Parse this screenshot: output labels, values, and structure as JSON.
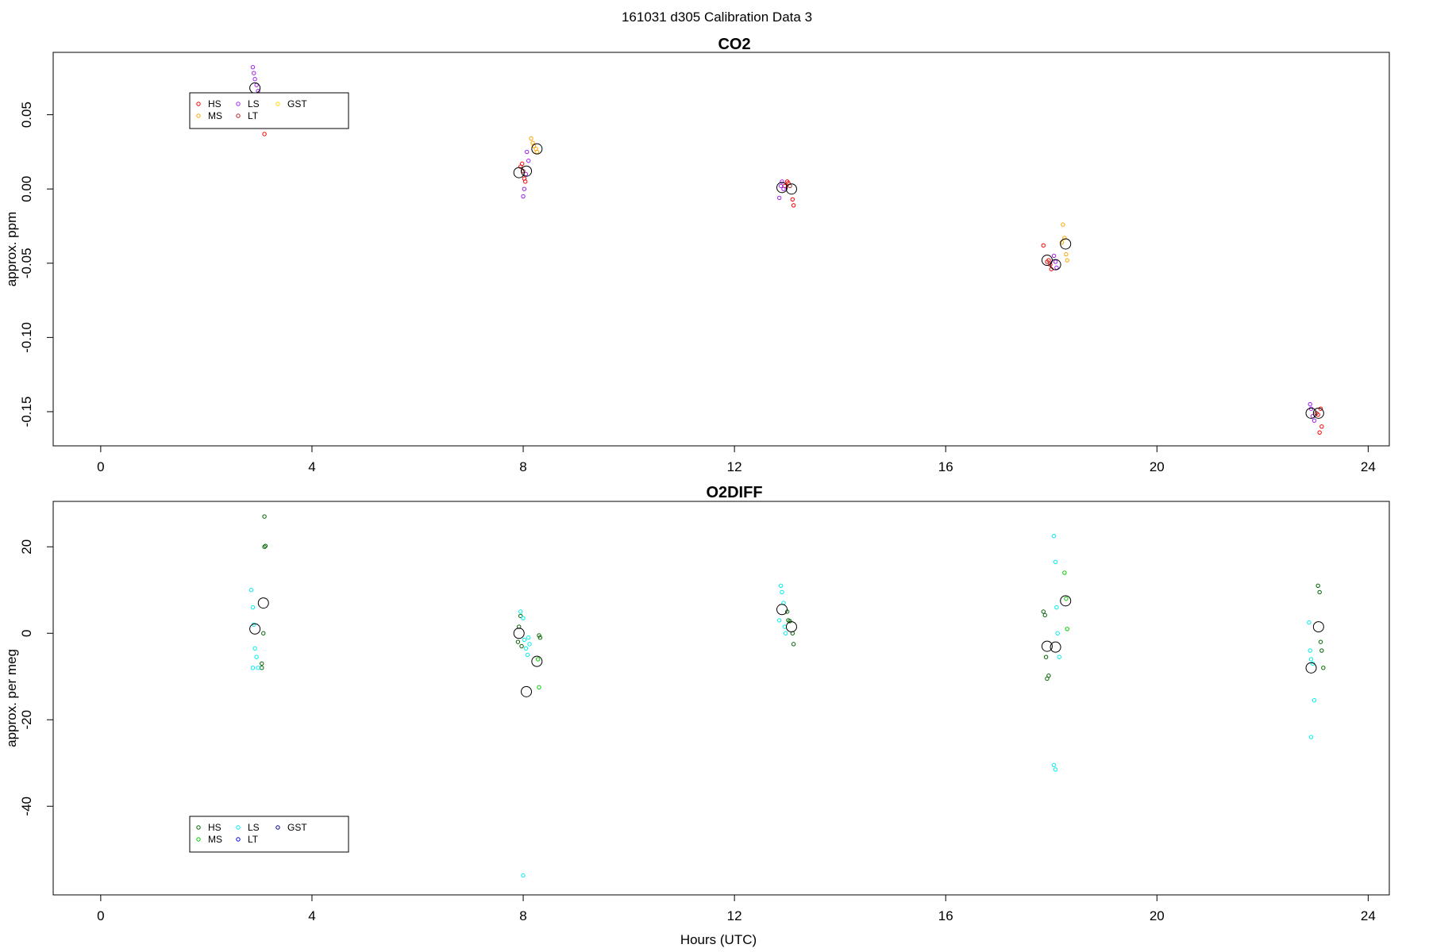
{
  "figure": {
    "suptitle": "161031   d305   Calibration Data 3",
    "xlabel": "Hours (UTC)"
  },
  "chart_data": [
    {
      "type": "scatter",
      "title": "CO2",
      "xlabel": "",
      "ylabel": "approx. ppm",
      "xlim": [
        -0.9,
        24.4
      ],
      "ylim": [
        -0.173,
        0.092
      ],
      "xticks": [
        0,
        4,
        8,
        12,
        16,
        20,
        24
      ],
      "yticks": [
        0.05,
        0.0,
        -0.05,
        -0.1,
        -0.15
      ],
      "ytick_labels": [
        "0.05",
        "0.00",
        "-0.05",
        "-0.10",
        "-0.15"
      ],
      "legend": {
        "placement": "top-left",
        "entries": [
          "HS",
          "MS",
          "LS",
          "LT",
          "GST"
        ]
      },
      "series": [
        {
          "name": "HS",
          "color": "#ff0000",
          "x": [
            3.1,
            7.95,
            7.98,
            8.02,
            8.04,
            12.95,
            13.0,
            13.02,
            13.1,
            13.12,
            17.95,
            17.98,
            18.0,
            17.85,
            23.1,
            23.12,
            23.08,
            23.05
          ],
          "y": [
            0.037,
            0.015,
            0.017,
            0.007,
            0.005,
            0.002,
            0.005,
            0.004,
            -0.007,
            -0.011,
            -0.048,
            -0.051,
            -0.054,
            -0.038,
            -0.148,
            -0.16,
            -0.164,
            -0.152
          ]
        },
        {
          "name": "MS",
          "color": "#ffa500",
          "x": [
            8.15,
            8.18,
            8.2,
            8.24,
            8.26,
            18.22,
            18.25,
            18.28,
            18.3,
            18.2
          ],
          "y": [
            0.034,
            0.031,
            0.029,
            0.027,
            0.025,
            -0.024,
            -0.033,
            -0.044,
            -0.048,
            -0.036
          ]
        },
        {
          "name": "LS",
          "color": "#a020f0",
          "x": [
            2.88,
            2.9,
            2.92,
            2.95,
            2.98,
            8.0,
            8.02,
            8.05,
            8.07,
            8.1,
            12.85,
            12.88,
            12.9,
            12.93,
            18.05,
            18.08,
            18.1,
            22.9,
            22.92,
            22.95,
            22.98
          ],
          "y": [
            0.082,
            0.078,
            0.074,
            0.07,
            0.066,
            -0.005,
            0.0,
            0.01,
            0.025,
            0.019,
            -0.006,
            0.002,
            0.005,
            0.0,
            -0.045,
            -0.049,
            -0.053,
            -0.145,
            -0.148,
            -0.153,
            -0.156
          ]
        },
        {
          "name": "LT",
          "color": "#b22222",
          "x": [
            3.05,
            8.0,
            13.05,
            17.92,
            23.02
          ],
          "y": [
            0.062,
            0.012,
            0.002,
            -0.049,
            -0.151
          ]
        },
        {
          "name": "GST",
          "color": "#ffd700",
          "x": [],
          "y": []
        }
      ],
      "means": {
        "x": [
          2.92,
          7.92,
          8.06,
          8.26,
          12.9,
          13.08,
          17.92,
          18.08,
          18.27,
          22.92,
          23.06
        ],
        "y": [
          0.068,
          0.011,
          0.012,
          0.027,
          0.001,
          0.0,
          -0.048,
          -0.051,
          -0.037,
          -0.151,
          -0.151
        ]
      }
    },
    {
      "type": "scatter",
      "title": "O2DIFF",
      "xlabel": "Hours (UTC)",
      "ylabel": "approx. per meg",
      "xlim": [
        -0.9,
        24.4
      ],
      "ylim": [
        -60.5,
        30.5
      ],
      "xticks": [
        0,
        4,
        8,
        12,
        16,
        20,
        24
      ],
      "yticks": [
        20,
        0,
        -20,
        -40
      ],
      "ytick_labels": [
        "20",
        "0",
        "-20",
        "-40"
      ],
      "legend": {
        "placement": "bottom-left",
        "entries": [
          "HS",
          "MS",
          "LS",
          "LT",
          "GST"
        ]
      },
      "series": [
        {
          "name": "HS",
          "color": "#006400",
          "x": [
            3.1,
            3.1,
            3.12,
            3.08,
            3.05,
            3.05,
            7.95,
            7.92,
            7.97,
            7.9,
            8.3,
            8.32,
            13.0,
            13.02,
            13.05,
            13.1,
            13.12,
            17.85,
            17.88,
            17.9,
            17.92,
            17.95,
            23.05,
            23.08,
            23.1,
            23.12,
            23.15
          ],
          "y": [
            27,
            20,
            20.2,
            0,
            -7,
            -8,
            4,
            1.5,
            -3,
            -2,
            -0.5,
            -1,
            5,
            3,
            2.8,
            0,
            -2.5,
            5,
            4.2,
            -5.5,
            -10.5,
            -9.8,
            11,
            9.5,
            -2,
            -4,
            -8
          ]
        },
        {
          "name": "MS",
          "color": "#00cd00",
          "x": [
            8.28,
            8.3,
            18.25,
            18.28,
            18.3
          ],
          "y": [
            -6,
            -12.5,
            14,
            8,
            1
          ]
        },
        {
          "name": "LS",
          "color": "#00eeee",
          "x": [
            2.85,
            2.88,
            2.9,
            2.92,
            2.95,
            2.98,
            2.88,
            7.95,
            8.0,
            8.02,
            8.05,
            8.08,
            8.1,
            8.12,
            8.0,
            12.88,
            12.9,
            12.93,
            12.95,
            12.97,
            12.85,
            18.05,
            18.08,
            18.1,
            18.12,
            18.15,
            18.05,
            18.08,
            22.88,
            22.9,
            22.92,
            22.95,
            22.98,
            22.92
          ],
          "y": [
            10,
            6,
            2,
            -3.5,
            -5.5,
            -8,
            -8,
            5,
            3.5,
            -1.5,
            -3.5,
            -5,
            -1,
            -2.5,
            -56,
            11,
            9.5,
            7,
            1.5,
            0,
            3,
            22.5,
            16.5,
            6,
            0,
            -5.5,
            -30.5,
            -31.5,
            2.5,
            -4,
            -6,
            -7,
            -15.5,
            -24
          ]
        },
        {
          "name": "LT",
          "color": "#0000ff",
          "x": [],
          "y": []
        },
        {
          "name": "GST",
          "color": "#00008b",
          "x": [],
          "y": []
        }
      ],
      "means": {
        "x": [
          2.92,
          3.08,
          7.92,
          8.06,
          8.26,
          12.9,
          13.08,
          17.92,
          18.08,
          18.27,
          22.92,
          23.06
        ],
        "y": [
          1,
          7,
          0,
          -13.5,
          -6.5,
          5.5,
          1.5,
          -3,
          -3.2,
          7.5,
          -8,
          1.5
        ]
      }
    }
  ]
}
